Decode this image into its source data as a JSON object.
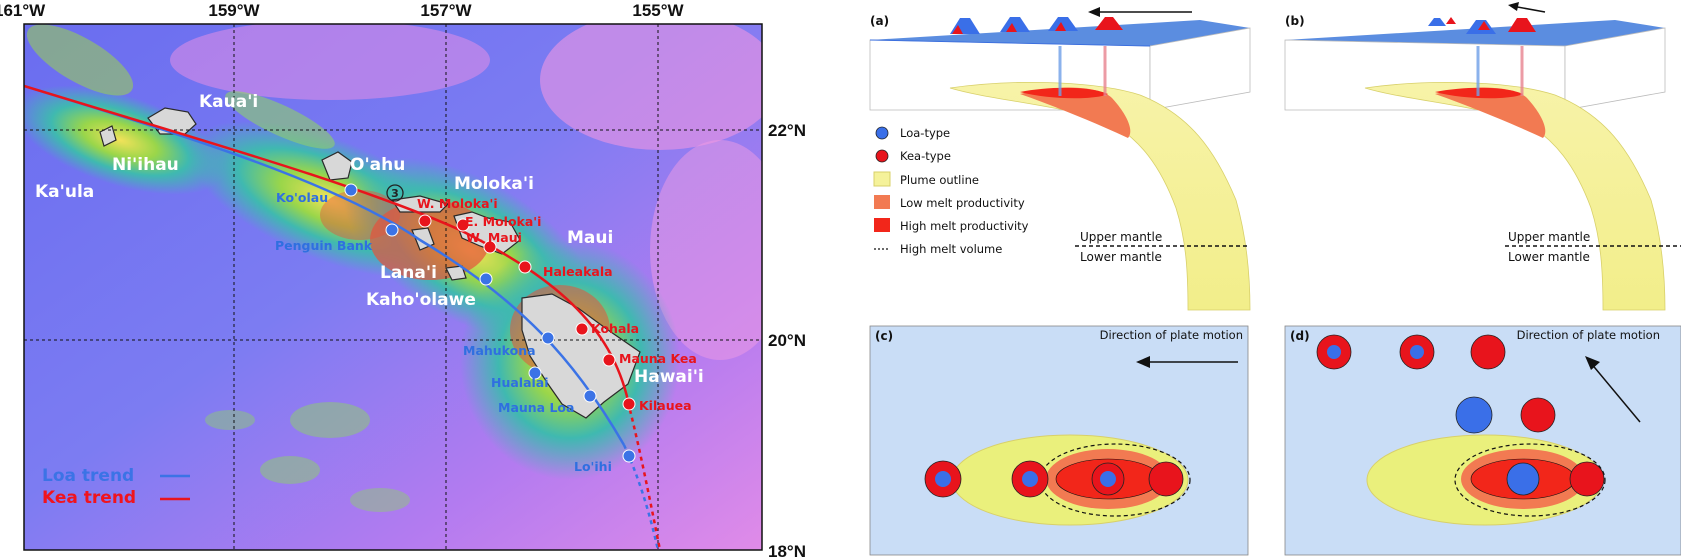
{
  "map": {
    "lon_labels": [
      "161°W",
      "159°W",
      "157°W",
      "155°W"
    ],
    "lat_labels": [
      "22°N",
      "20°N",
      "18°N"
    ],
    "islands": [
      "Kaua'i",
      "Ni'ihau",
      "Ka'ula",
      "O'ahu",
      "Moloka'i",
      "Maui",
      "Lana'i",
      "Kaho'olawe",
      "Hawai'i"
    ],
    "loa_volcanoes": [
      "Ko'olau",
      "Penguin Bank",
      "Mahukona",
      "Hualalai",
      "Mauna Loa",
      "Lo'ihi"
    ],
    "kea_volcanoes": [
      "W. Moloka'i",
      "E. Moloka'i",
      "W. Maui",
      "Haleakala",
      "Kohala",
      "Mauna Kea",
      "Kilauea"
    ],
    "marker": "3",
    "legend": {
      "loa": "Loa trend",
      "kea": "Kea trend"
    },
    "colors": {
      "loa": "#3b73e6",
      "kea": "#e8141c"
    }
  },
  "diagram": {
    "panel_a": "(a)",
    "panel_b": "(b)",
    "panel_c": "(c)",
    "panel_d": "(d)",
    "legend": [
      "Loa-type",
      "Kea-type",
      "Plume outline",
      "Low melt productivity",
      "High melt productivity",
      "High melt volume"
    ],
    "upper_mantle": "Upper mantle",
    "lower_mantle": "Lower mantle",
    "plate_motion": "Direction of plate motion",
    "colors": {
      "plume": "#f5f29a",
      "low_melt": "#f27a52",
      "high_melt": "#f2261a",
      "loa": "#3a6fe8",
      "plate": "#5b8de0",
      "panel_bg": "#c9ddf6"
    }
  }
}
